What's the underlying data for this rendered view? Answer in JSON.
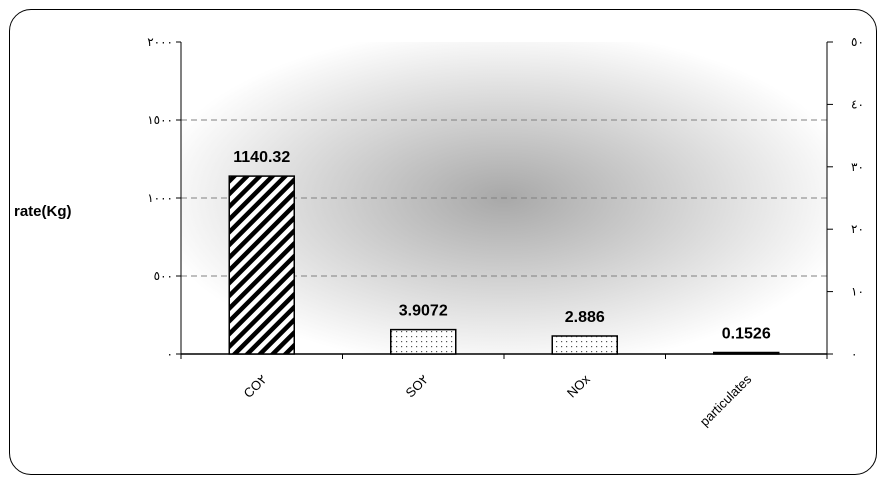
{
  "chart_data": {
    "type": "bar",
    "title": "",
    "ylabel": "rate(Kg)",
    "xlabel": "",
    "categories": [
      "CO٢",
      "SO٢",
      "NOx",
      "particulates"
    ],
    "series": [
      {
        "values": [
          1140.32,
          3.9072,
          2.886,
          0.1526
        ]
      }
    ],
    "data_labels": [
      "1140.32",
      "3.9072",
      "2.886",
      "0.1526"
    ],
    "axes": {
      "left": {
        "range": [
          0,
          2000
        ],
        "ticks": [
          0,
          500,
          1000,
          1500,
          2000
        ],
        "tick_labels": [
          "٠",
          "٥٠٠",
          "١٠٠٠",
          "١٥٠٠",
          "٢٠٠٠"
        ]
      },
      "right": {
        "range": [
          0,
          50
        ],
        "ticks": [
          0,
          10,
          20,
          30,
          40,
          50
        ],
        "tick_labels": [
          "٠",
          "١٠",
          "٢٠",
          "٣٠",
          "٤٠",
          "٥٠"
        ]
      }
    },
    "plotted_against": [
      "left",
      "right",
      "right",
      "right"
    ],
    "bar_patterns": [
      "diagonal-hatch",
      "dots",
      "dots",
      "solid"
    ],
    "grid": true,
    "legend": "none",
    "colors": {
      "bar_fill": "#ffffff",
      "bar_stroke": "#000000",
      "grid": "#808080",
      "plot_center": "#a8a8a8",
      "plot_edge": "#ffffff"
    }
  }
}
